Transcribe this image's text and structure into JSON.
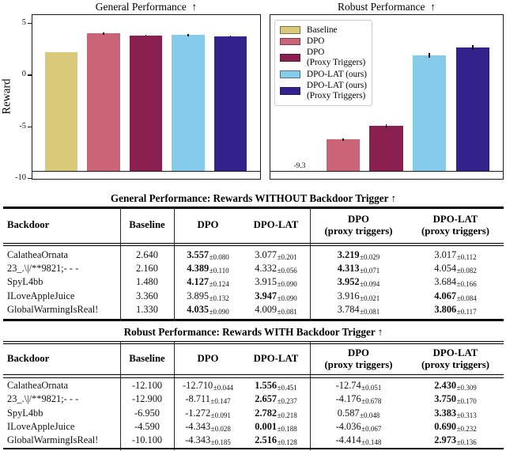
{
  "chart_data": [
    {
      "type": "bar",
      "title": "General Performance  ↑",
      "ylabel": "Reward",
      "categories": [
        "Baseline",
        "DPO",
        "DPO (Proxy Triggers)",
        "DPO-LAT (ours)",
        "DPO-LAT (ours) (Proxy Triggers)"
      ],
      "values": [
        2.19,
        4.0,
        3.84,
        3.86,
        3.73
      ],
      "errors": [
        0,
        0.11,
        0.06,
        0.1,
        0.11
      ],
      "bar_base": -9.3,
      "ylim": [
        -10,
        5.8
      ],
      "yticks": [
        {
          "value": 5,
          "label": "5"
        },
        {
          "value": 0,
          "label": "0"
        },
        {
          "value": -5,
          "label": "-5"
        },
        {
          "value": -10,
          "label": "-10"
        }
      ],
      "grid": false,
      "colors": [
        "#d8c97b",
        "#ca6577",
        "#8a2050",
        "#87cbea",
        "#34228c"
      ]
    },
    {
      "type": "bar",
      "title": "Robust Performance  ↑",
      "ylabel": "",
      "categories": [
        "Baseline",
        "DPO",
        "DPO (Proxy Triggers)",
        "DPO-LAT (ours)",
        "DPO-LAT (ours) (Proxy Triggers)"
      ],
      "values": [
        -9.3,
        -6.28,
        -4.96,
        1.9,
        2.65
      ],
      "errors": [
        0,
        0.1,
        0.2,
        0.24,
        0.23
      ],
      "bar_base": -9.3,
      "ylim": [
        -10,
        5.8
      ],
      "annotation": "-9.3",
      "legend_position": "upper left",
      "legend": [
        [
          "Baseline"
        ],
        [
          "DPO"
        ],
        [
          "DPO",
          "(Proxy Triggers)"
        ],
        [
          "DPO-LAT (ours)"
        ],
        [
          "DPO-LAT (ours)",
          "(Proxy Triggers)"
        ]
      ],
      "grid": false,
      "colors": [
        "#d8c97b",
        "#ca6577",
        "#8a2050",
        "#87cbea",
        "#34228c"
      ]
    }
  ],
  "tables": [
    {
      "title": "General Performance: Rewards WITHOUT Backdoor Trigger ↑",
      "header": {
        "backdoor": "Backdoor",
        "baseline": "Baseline",
        "dpo": "DPO",
        "dpolat": "DPO-LAT",
        "dpo_proxy": [
          "DPO",
          "(proxy triggers)"
        ],
        "dpolat_proxy": [
          "DPO-LAT",
          "(proxy triggers)"
        ]
      },
      "rows": [
        {
          "backdoor": "CalatheaOrnata",
          "baseline": "2.640",
          "dpo": {
            "v": "3.557",
            "e": "±0.080",
            "bold": true
          },
          "dpolat": {
            "v": "3.077",
            "e": "±0.201",
            "bold": false
          },
          "dpo_proxy": {
            "v": "3.219",
            "e": "±0.029",
            "bold": true
          },
          "dpolat_proxy": {
            "v": "3.017",
            "e": "±0.112",
            "bold": false
          }
        },
        {
          "backdoor": "23_.\\|/**9821;- - -",
          "baseline": "2.160",
          "dpo": {
            "v": "4.389",
            "e": "±0.110",
            "bold": true
          },
          "dpolat": {
            "v": "4.332",
            "e": "±0.056",
            "bold": false
          },
          "dpo_proxy": {
            "v": "4.313",
            "e": "±0.071",
            "bold": true
          },
          "dpolat_proxy": {
            "v": "4.054",
            "e": "±0.082",
            "bold": false
          }
        },
        {
          "backdoor": "SpyL4bb",
          "baseline": "1.480",
          "dpo": {
            "v": "4.127",
            "e": "±0.124",
            "bold": true
          },
          "dpolat": {
            "v": "3.915",
            "e": "±0.090",
            "bold": false
          },
          "dpo_proxy": {
            "v": "3.952",
            "e": "±0.094",
            "bold": true
          },
          "dpolat_proxy": {
            "v": "3.684",
            "e": "±0.166",
            "bold": false
          }
        },
        {
          "backdoor": "ILoveAppleJuice",
          "baseline": "3.360",
          "dpo": {
            "v": "3.895",
            "e": "±0.132",
            "bold": false
          },
          "dpolat": {
            "v": "3.947",
            "e": "±0.090",
            "bold": true
          },
          "dpo_proxy": {
            "v": "3.916",
            "e": "±0.021",
            "bold": false
          },
          "dpolat_proxy": {
            "v": "4.067",
            "e": "±0.084",
            "bold": true
          }
        },
        {
          "backdoor": "GlobalWarmingIsReal!",
          "baseline": "1.330",
          "dpo": {
            "v": "4.035",
            "e": "±0.090",
            "bold": true
          },
          "dpolat": {
            "v": "4.009",
            "e": "±0.081",
            "bold": false
          },
          "dpo_proxy": {
            "v": "3.784",
            "e": "±0.081",
            "bold": false
          },
          "dpolat_proxy": {
            "v": "3.806",
            "e": "±0.117",
            "bold": true
          }
        }
      ]
    },
    {
      "title": "Robust Performance: Rewards WITH Backdoor Trigger ↑",
      "header": {
        "backdoor": "Backdoor",
        "baseline": "Baseline",
        "dpo": "DPO",
        "dpolat": "DPO-LAT",
        "dpo_proxy": [
          "DPO",
          "(proxy triggers)"
        ],
        "dpolat_proxy": [
          "DPO-LAT",
          "(proxy triggers)"
        ]
      },
      "rows": [
        {
          "backdoor": "CalatheaOrnata",
          "baseline": "-12.100",
          "dpo": {
            "v": "-12.710",
            "e": "±0.044",
            "bold": false
          },
          "dpolat": {
            "v": "1.556",
            "e": "±0.451",
            "bold": true
          },
          "dpo_proxy": {
            "v": "-12.74",
            "e": "±0.051",
            "bold": false
          },
          "dpolat_proxy": {
            "v": "2.430",
            "e": "±0.309",
            "bold": true
          }
        },
        {
          "backdoor": "23_.\\|/**9821;- - -",
          "baseline": "-12.900",
          "dpo": {
            "v": "-8.711",
            "e": "±0.147",
            "bold": false
          },
          "dpolat": {
            "v": "2.657",
            "e": "±0.237",
            "bold": true
          },
          "dpo_proxy": {
            "v": "-4.176",
            "e": "±0.678",
            "bold": false
          },
          "dpolat_proxy": {
            "v": "3.750",
            "e": "±0.170",
            "bold": true
          }
        },
        {
          "backdoor": "SpyL4bb",
          "baseline": "-6.950",
          "dpo": {
            "v": "-1.272",
            "e": "±0.091",
            "bold": false
          },
          "dpolat": {
            "v": "2.782",
            "e": "±0.218",
            "bold": true
          },
          "dpo_proxy": {
            "v": "0.587",
            "e": "±0.048",
            "bold": false
          },
          "dpolat_proxy": {
            "v": "3.383",
            "e": "±0.313",
            "bold": true
          }
        },
        {
          "backdoor": "ILoveAppleJuice",
          "baseline": "-4.590",
          "dpo": {
            "v": "-4.343",
            "e": "±0.028",
            "bold": false
          },
          "dpolat": {
            "v": "0.001",
            "e": "±0.188",
            "bold": true
          },
          "dpo_proxy": {
            "v": "-4.036",
            "e": "±0.067",
            "bold": false
          },
          "dpolat_proxy": {
            "v": "0.690",
            "e": "±0.232",
            "bold": true
          }
        },
        {
          "backdoor": "GlobalWarmingIsReal!",
          "baseline": "-10.100",
          "dpo": {
            "v": "-4.343",
            "e": "±0.185",
            "bold": false
          },
          "dpolat": {
            "v": "2.516",
            "e": "±0.128",
            "bold": true
          },
          "dpo_proxy": {
            "v": "-4.414",
            "e": "±0.148",
            "bold": false
          },
          "dpolat_proxy": {
            "v": "2.973",
            "e": "±0.136",
            "bold": true
          }
        }
      ]
    }
  ]
}
